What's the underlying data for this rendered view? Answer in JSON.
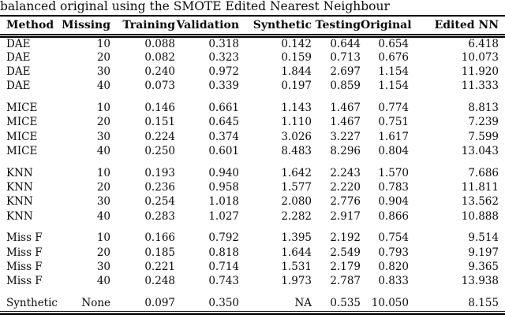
{
  "caption": "balanced original using the SMOTE Edited Nearest Neighbour",
  "table": {
    "columns": [
      "Method",
      "Missing",
      "Training",
      "Validation",
      "Synthetic",
      "Testing",
      "Original",
      "Edited NN"
    ],
    "groups": [
      [
        [
          "DAE",
          "10",
          "0.088",
          "0.318",
          "0.142",
          "0.644",
          "0.654",
          "6.418"
        ],
        [
          "DAE",
          "20",
          "0.082",
          "0.323",
          "0.159",
          "0.713",
          "0.676",
          "10.073"
        ],
        [
          "DAE",
          "30",
          "0.240",
          "0.972",
          "1.844",
          "2.697",
          "1.154",
          "11.920"
        ],
        [
          "DAE",
          "40",
          "0.073",
          "0.339",
          "0.197",
          "0.859",
          "1.154",
          "11.333"
        ]
      ],
      [
        [
          "MICE",
          "10",
          "0.146",
          "0.661",
          "1.143",
          "1.467",
          "0.774",
          "8.813"
        ],
        [
          "MICE",
          "20",
          "0.151",
          "0.645",
          "1.110",
          "1.467",
          "0.751",
          "7.239"
        ],
        [
          "MICE",
          "30",
          "0.224",
          "0.374",
          "3.026",
          "3.227",
          "1.617",
          "7.599"
        ],
        [
          "MICE",
          "40",
          "0.250",
          "0.601",
          "8.483",
          "8.296",
          "0.804",
          "13.043"
        ]
      ],
      [
        [
          "KNN",
          "10",
          "0.193",
          "0.940",
          "1.642",
          "2.243",
          "1.570",
          "7.686"
        ],
        [
          "KNN",
          "20",
          "0.236",
          "0.958",
          "1.577",
          "2.220",
          "0.783",
          "11.811"
        ],
        [
          "KNN",
          "30",
          "0.254",
          "1.018",
          "2.080",
          "2.776",
          "0.904",
          "13.562"
        ],
        [
          "KNN",
          "40",
          "0.283",
          "1.027",
          "2.282",
          "2.917",
          "0.866",
          "10.888"
        ]
      ],
      [
        [
          "Miss F",
          "10",
          "0.166",
          "0.792",
          "1.395",
          "2.192",
          "0.754",
          "9.514"
        ],
        [
          "Miss F",
          "20",
          "0.185",
          "0.818",
          "1.644",
          "2.549",
          "0.793",
          "9.197"
        ],
        [
          "Miss F",
          "30",
          "0.221",
          "0.714",
          "1.531",
          "2.179",
          "0.820",
          "9.365"
        ],
        [
          "Miss F",
          "40",
          "0.248",
          "0.743",
          "1.973",
          "2.787",
          "0.833",
          "13.938"
        ]
      ],
      [
        [
          "Synthetic",
          "None",
          "0.097",
          "0.350",
          "NA",
          "0.535",
          "10.050",
          "8.155"
        ]
      ]
    ]
  }
}
